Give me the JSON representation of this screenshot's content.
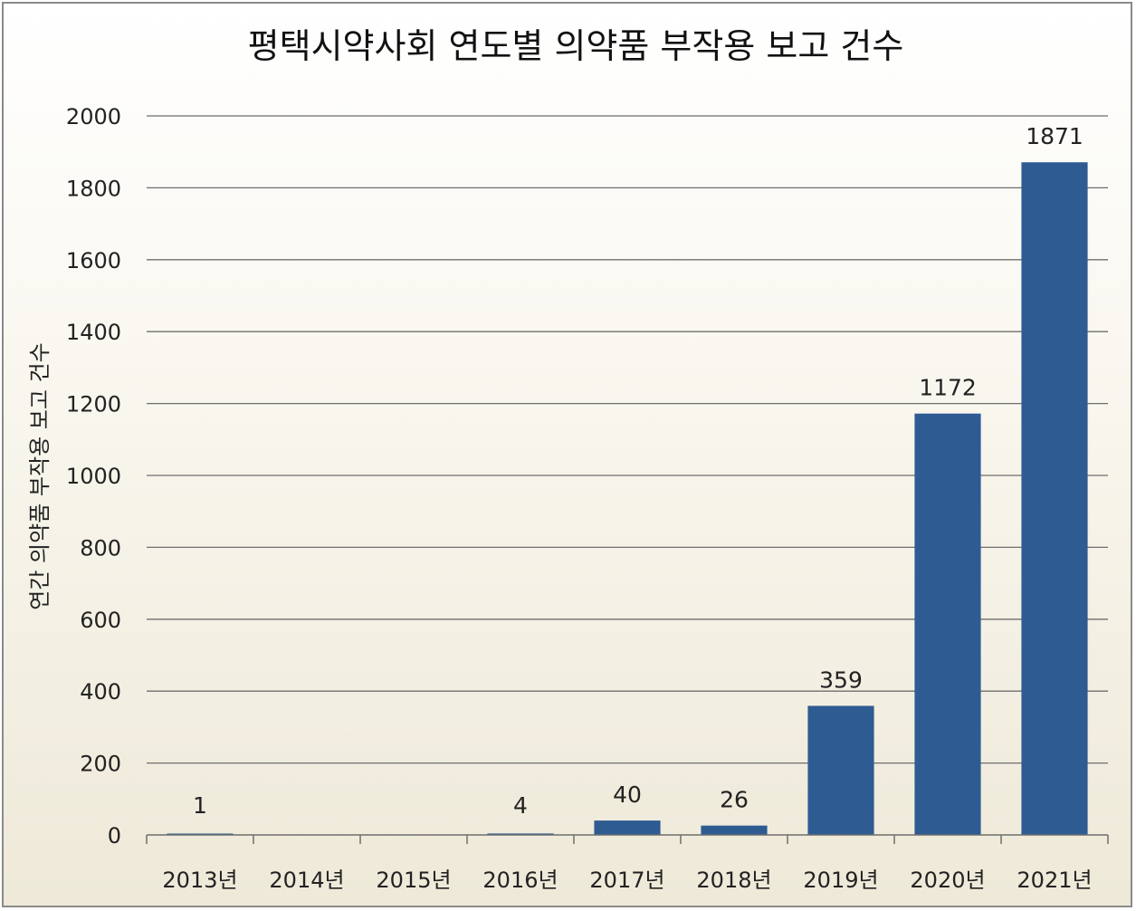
{
  "chart_data": {
    "type": "bar",
    "title": "평택시약사회 연도별 의약품 부작용 보고 건수",
    "ylabel": "연간 의약품 부작용 보고 건수",
    "xlabel": "",
    "categories": [
      "2013년",
      "2014년",
      "2015년",
      "2016년",
      "2017년",
      "2018년",
      "2019년",
      "2020년",
      "2021년"
    ],
    "values": [
      1,
      0,
      0,
      4,
      40,
      26,
      359,
      1172,
      1871
    ],
    "data_labels": [
      "1",
      "",
      "",
      "4",
      "40",
      "26",
      "359",
      "1172",
      "1871"
    ],
    "ylim": [
      0,
      2000
    ],
    "yticks": [
      "0",
      "200",
      "400",
      "600",
      "800",
      "1000",
      "1200",
      "1400",
      "1600",
      "1800",
      "2000"
    ],
    "grid": true,
    "legend": "none",
    "bar_color": "#2f5b93"
  }
}
